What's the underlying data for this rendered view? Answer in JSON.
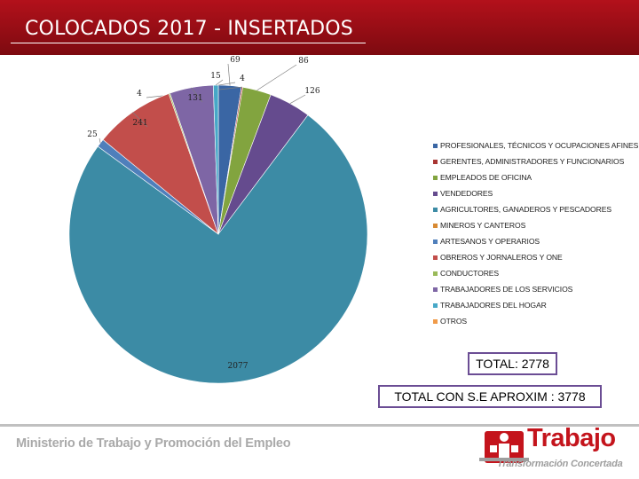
{
  "title": "COLOCADOS 2017 -  INSERTADOS",
  "chart_data": {
    "type": "pie",
    "title": "",
    "categories": [
      "PROFESIONALES, TÉCNICOS Y OCUPACIONES AFINES",
      "GERENTES, ADMINISTRADORES Y FUNCIONARIOS",
      "EMPLEADOS DE OFICINA",
      "VENDEDORES",
      "AGRICULTORES, GANADEROS Y PESCADORES",
      "MINEROS Y CANTEROS",
      "ARTESANOS Y OPERARIOS",
      "OBREROS Y JORNALEROS Y ONE",
      "CONDUCTORES",
      "TRABAJADORES DE LOS SERVICIOS",
      "TRABAJADORES DEL HOGAR",
      "OTROS"
    ],
    "values": [
      69,
      4,
      86,
      126,
      2077,
      0,
      25,
      241,
      4,
      131,
      15,
      0
    ],
    "value_labels": [
      "69",
      "4",
      "86",
      "126",
      "2077",
      "",
      "25",
      "241",
      "4",
      "131",
      "15",
      ""
    ],
    "colors": [
      "#3a66a4",
      "#a83432",
      "#82a43f",
      "#654b8e",
      "#3c8ba5",
      "#d88a33",
      "#4f7fbb",
      "#c24e4b",
      "#9aba59",
      "#7e66a5",
      "#47a8c7",
      "#f09a48"
    ],
    "legend_position": "right"
  },
  "totals": {
    "total": "TOTAL:  2778",
    "total_con": "TOTAL CON S.E APROXIM :  3778"
  },
  "footer": {
    "ministry": "Ministerio de Trabajo y Promoción del Empleo",
    "logo_word": "Trabajo",
    "logo_sub": "Transformación Concertada"
  }
}
